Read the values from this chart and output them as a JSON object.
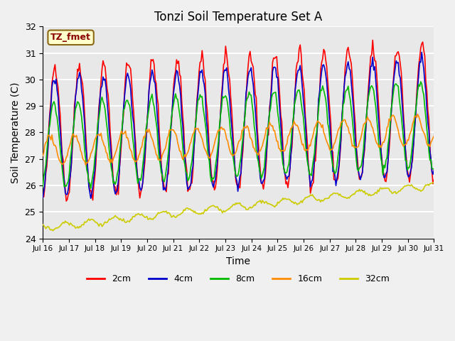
{
  "title": "Tonzi Soil Temperature Set A",
  "xlabel": "Time",
  "ylabel": "Soil Temperature (C)",
  "annotation": "TZ_fmet",
  "annotation_color": "#8B0000",
  "annotation_bg": "#FFFFCC",
  "annotation_edge": "#8B6914",
  "ylim": [
    24.0,
    32.0
  ],
  "yticks": [
    24.0,
    25.0,
    26.0,
    27.0,
    28.0,
    29.0,
    30.0,
    31.0,
    32.0
  ],
  "xtick_labels": [
    "Jul 16",
    "Jul 17",
    "Jul 18",
    "Jul 19",
    "Jul 20",
    "Jul 21",
    "Jul 22",
    "Jul 23",
    "Jul 24",
    "Jul 25",
    "Jul 26",
    "Jul 27",
    "Jul 28",
    "Jul 29",
    "Jul 30",
    "Jul 31"
  ],
  "background_color": "#E8E8E8",
  "fig_color": "#F0F0F0",
  "grid_color": "#FFFFFF",
  "series_colors": {
    "2cm": "#FF0000",
    "4cm": "#0000CC",
    "8cm": "#00BB00",
    "16cm": "#FF8C00",
    "32cm": "#CCCC00"
  },
  "n_days": 16,
  "n_hours": 384,
  "seed": 42
}
